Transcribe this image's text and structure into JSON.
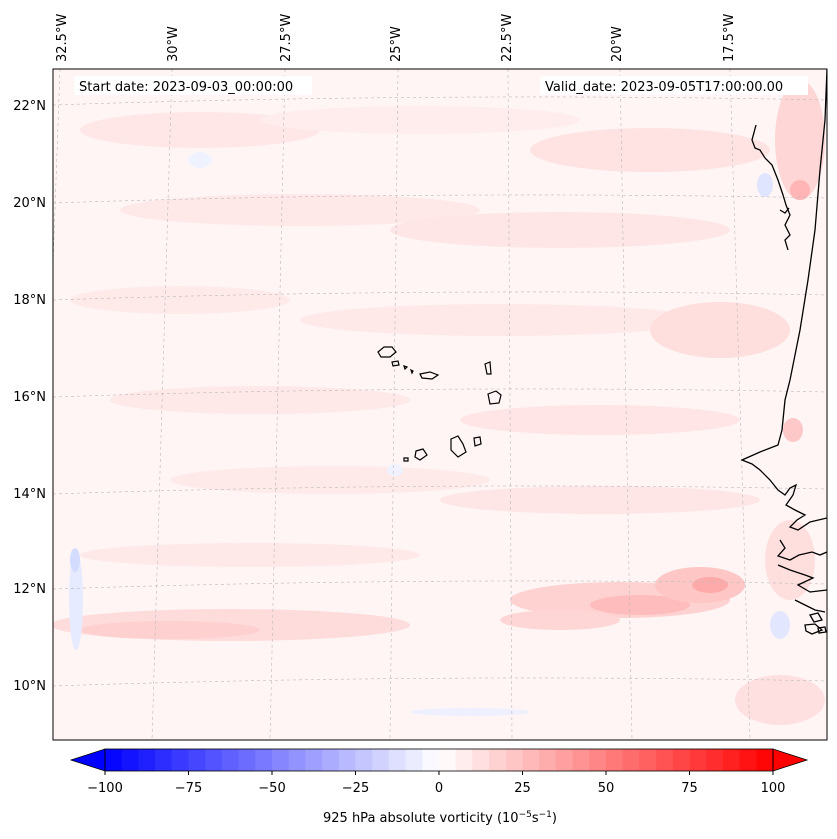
{
  "header": {
    "start_date": "Start date: 2023-09-03_00:00:00",
    "valid_date": "Valid_date: 2023-09-05T17:00:00.00"
  },
  "lon_labels": [
    "32.5°W",
    "30°W",
    "27.5°W",
    "25°W",
    "22.5°W",
    "20°W",
    "17.5°W"
  ],
  "lat_labels": [
    "22°N",
    "20°N",
    "18°N",
    "16°N",
    "14°N",
    "12°N",
    "10°N"
  ],
  "colorbar": {
    "ticks": [
      "−100",
      "−75",
      "−50",
      "−25",
      "0",
      "25",
      "50",
      "75",
      "100"
    ],
    "label": "925 hPa absolute vorticity (10",
    "label_exp1": "−5",
    "label_mid": "s",
    "label_exp2": "−1",
    "label_end": ")",
    "min_color": "#0000ff",
    "mid_color": "#ffffff",
    "max_color": "#ff0000"
  }
}
